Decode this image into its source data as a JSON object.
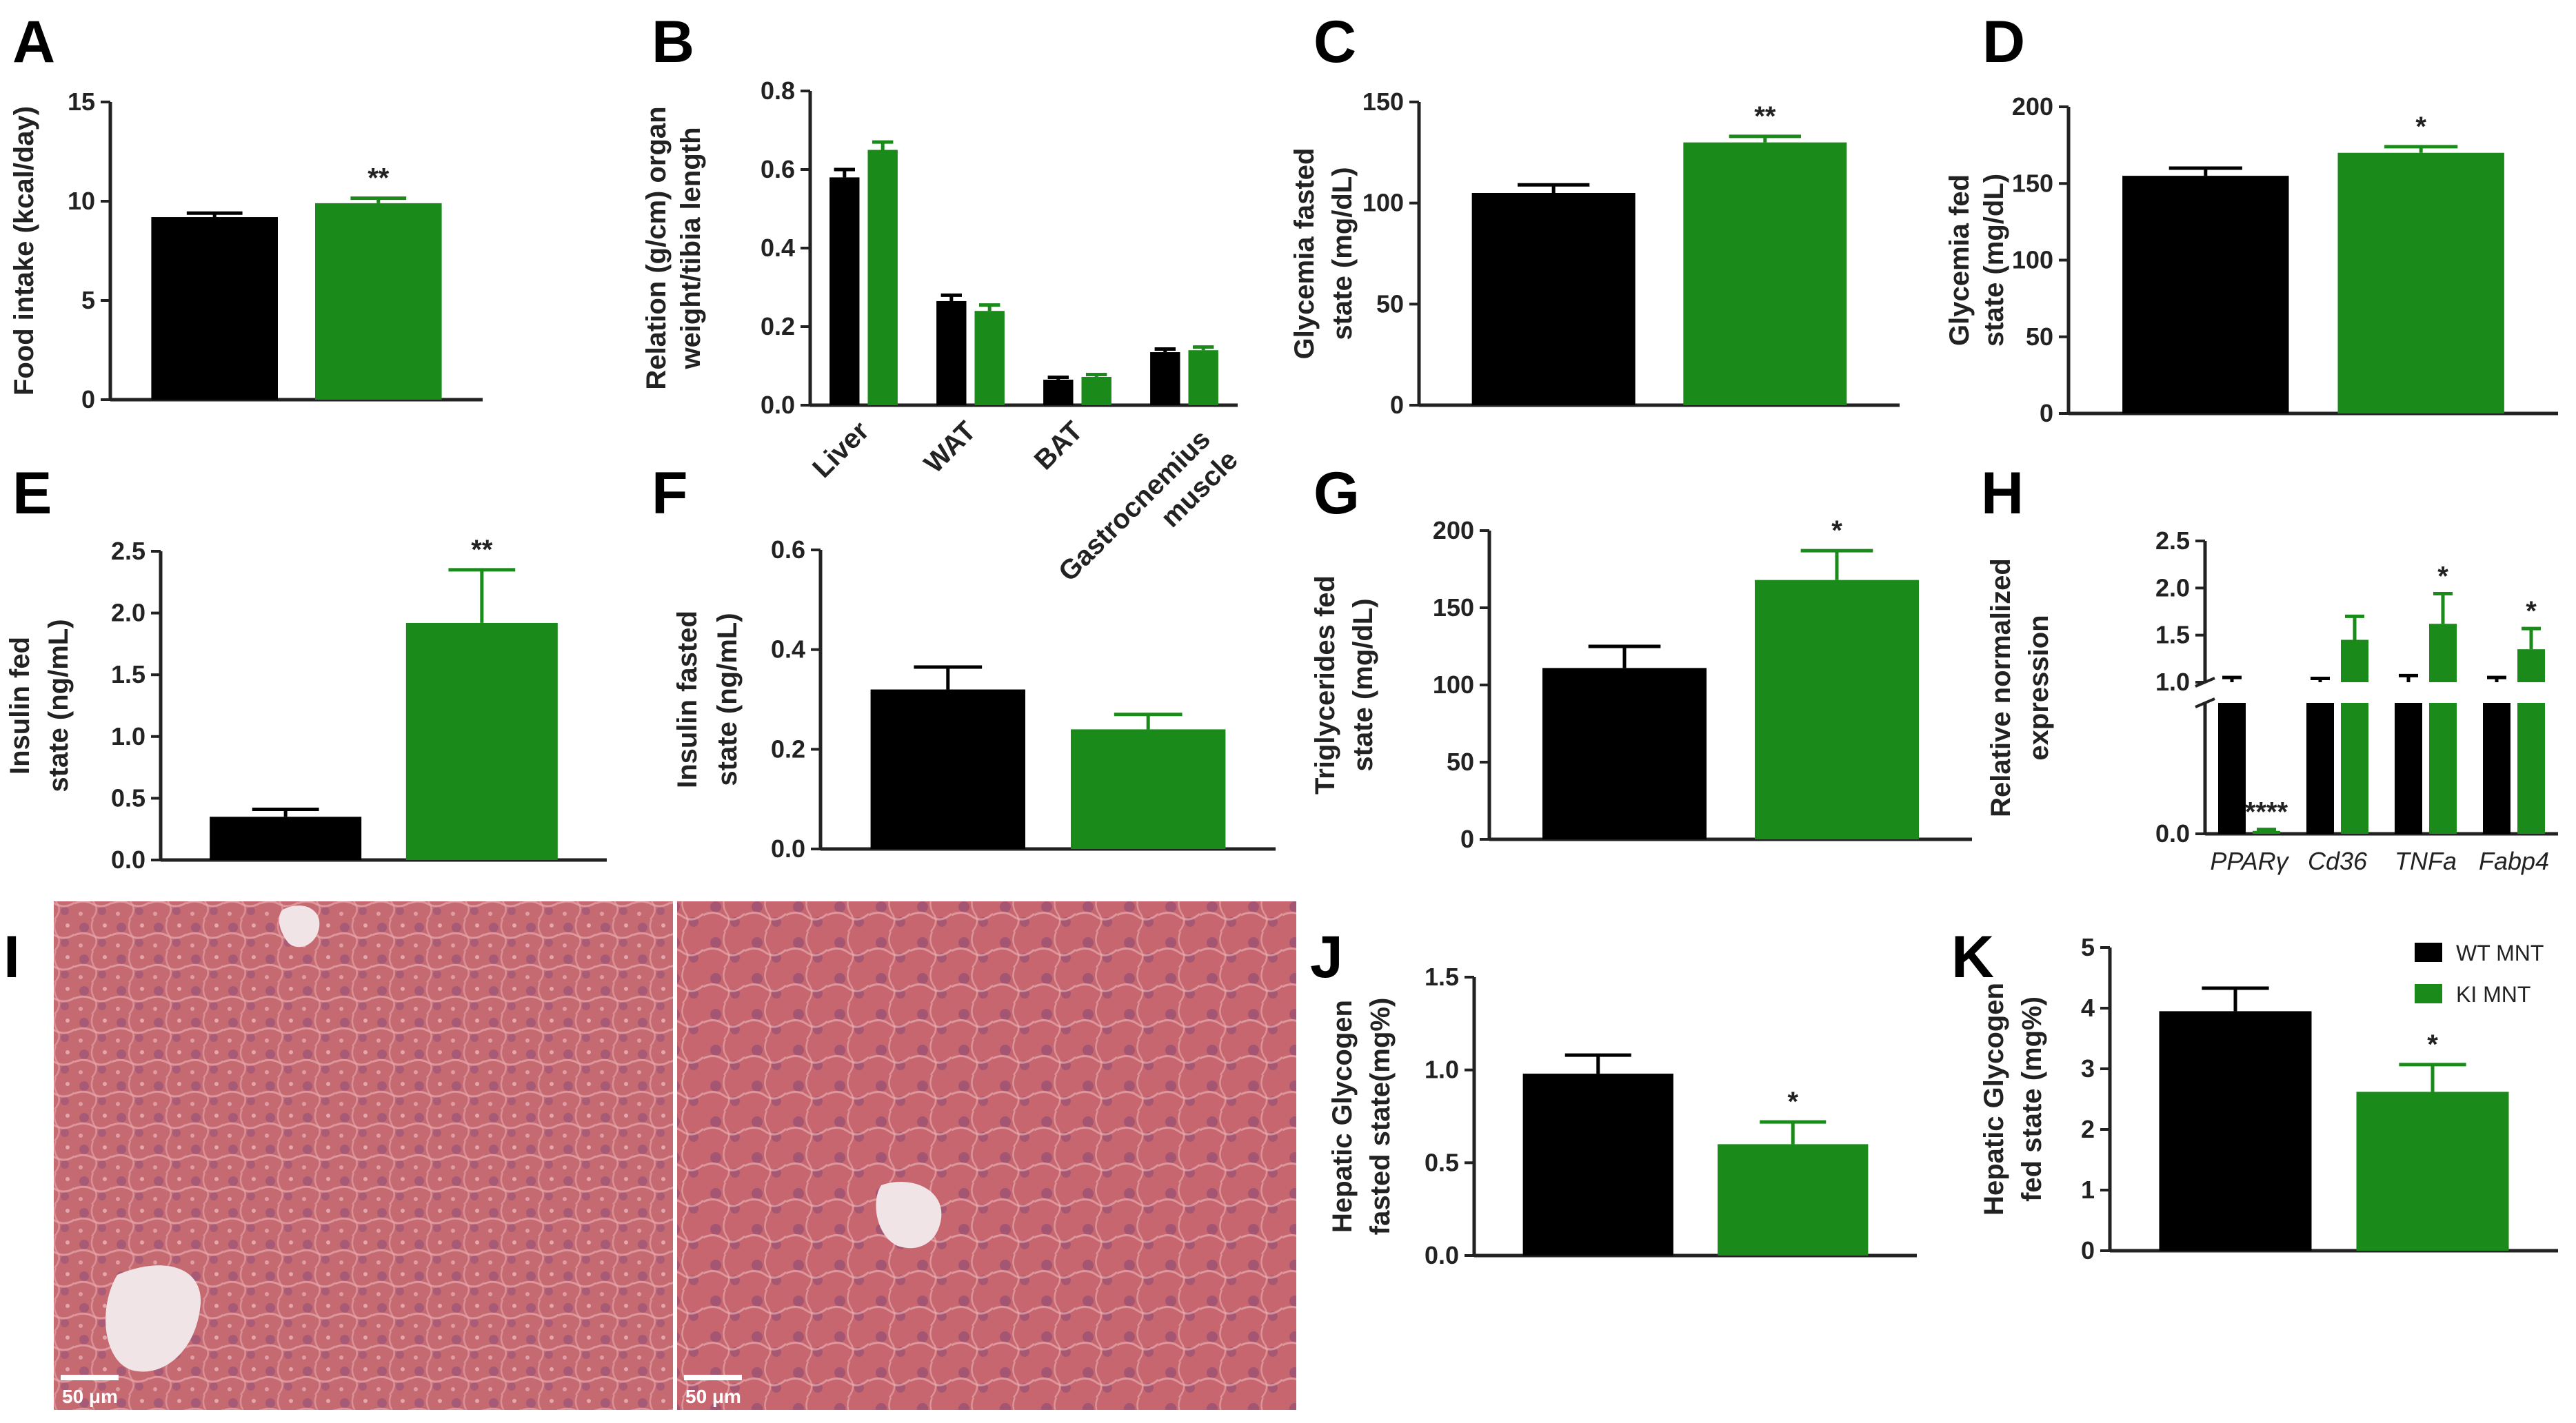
{
  "colors": {
    "wt": "#000000",
    "ki": "#1a8a1a",
    "axis": "#222222",
    "tissue": "#c8636e"
  },
  "legend": [
    {
      "label": "WT MNT",
      "color": "#000000"
    },
    {
      "label": "KI MNT",
      "color": "#1a8a1a"
    }
  ],
  "histology": {
    "label": "I",
    "panels": [
      {
        "scalebar": "50 μm"
      },
      {
        "scalebar": "50 μm"
      }
    ]
  },
  "chart_data": [
    {
      "id": "A",
      "label": "A",
      "type": "bar",
      "ylabel": "Food intake (kcal/day)",
      "ylim": [
        0,
        15
      ],
      "yticks": [
        "0",
        "5",
        "10",
        "15"
      ],
      "categories": [
        "WT MNT",
        "KI MNT"
      ],
      "values": [
        9.2,
        9.9
      ],
      "errors": [
        0.2,
        0.25
      ],
      "sig": [
        "",
        "**"
      ]
    },
    {
      "id": "B",
      "label": "B",
      "type": "bar",
      "ylabel": "Relation (g/cm) organ weight/tibia length",
      "ylim": [
        0,
        0.8
      ],
      "yticks": [
        "0.0",
        "0.2",
        "0.4",
        "0.6",
        "0.8"
      ],
      "categories": [
        "Liver",
        "WAT",
        "BAT",
        "Gastrocnemius muscle"
      ],
      "series": [
        {
          "name": "WT MNT",
          "values": [
            0.58,
            0.265,
            0.065,
            0.135
          ],
          "errors": [
            0.02,
            0.015,
            0.006,
            0.008
          ]
        },
        {
          "name": "KI MNT",
          "values": [
            0.65,
            0.24,
            0.072,
            0.14
          ],
          "errors": [
            0.02,
            0.015,
            0.006,
            0.008
          ]
        }
      ]
    },
    {
      "id": "C",
      "label": "C",
      "type": "bar",
      "ylabel": "Glycemia fasted state (mg/dL)",
      "ylim": [
        0,
        150
      ],
      "yticks": [
        "0",
        "50",
        "100",
        "150"
      ],
      "categories": [
        "WT MNT",
        "KI MNT"
      ],
      "values": [
        105,
        130
      ],
      "errors": [
        4,
        3
      ],
      "sig": [
        "",
        "**"
      ]
    },
    {
      "id": "D",
      "label": "D",
      "type": "bar",
      "ylabel": "Glycemia fed state (mg/dL)",
      "ylim": [
        0,
        200
      ],
      "yticks": [
        "0",
        "50",
        "100",
        "150",
        "200"
      ],
      "categories": [
        "WT MNT",
        "KI MNT"
      ],
      "values": [
        155,
        170
      ],
      "errors": [
        5,
        4
      ],
      "sig": [
        "",
        "*"
      ]
    },
    {
      "id": "E",
      "label": "E",
      "type": "bar",
      "ylabel": "Insulin fed state (ng/mL)",
      "ylim": [
        0,
        2.5
      ],
      "yticks": [
        "0.0",
        "0.5",
        "1.0",
        "1.5",
        "2.0",
        "2.5"
      ],
      "categories": [
        "WT MNT",
        "KI MNT"
      ],
      "values": [
        0.35,
        1.92
      ],
      "errors": [
        0.06,
        0.43
      ],
      "sig": [
        "",
        "**"
      ]
    },
    {
      "id": "F",
      "label": "F",
      "type": "bar",
      "ylabel": "Insulin fasted state (ng/mL)",
      "ylim": [
        0,
        0.6
      ],
      "yticks": [
        "0.0",
        "0.2",
        "0.4",
        "0.6"
      ],
      "categories": [
        "WT MNT",
        "KI MNT"
      ],
      "values": [
        0.32,
        0.24
      ],
      "errors": [
        0.045,
        0.03
      ],
      "sig": [
        "",
        ""
      ]
    },
    {
      "id": "G",
      "label": "G",
      "type": "bar",
      "ylabel": "Triglycerides fed state (mg/dL)",
      "ylim": [
        0,
        200
      ],
      "yticks": [
        "0",
        "50",
        "100",
        "150",
        "200"
      ],
      "categories": [
        "WT MNT",
        "KI MNT"
      ],
      "values": [
        111,
        168
      ],
      "errors": [
        14,
        19
      ],
      "sig": [
        "",
        "*"
      ]
    },
    {
      "id": "H",
      "label": "H",
      "type": "bar",
      "ylabel": "Relative normalized expression",
      "yticks_upper": [
        "1.0",
        "1.5",
        "2.0",
        "2.5"
      ],
      "yticks_lower": [
        "0.0"
      ],
      "categories": [
        "PPARγ",
        "Cd36",
        "TNFa",
        "Fabp4"
      ],
      "series": [
        {
          "name": "WT MNT",
          "values": [
            1.0,
            1.0,
            1.0,
            1.0
          ],
          "errors": [
            0.05,
            0.04,
            0.07,
            0.05
          ]
        },
        {
          "name": "KI MNT",
          "values": [
            0.02,
            1.45,
            1.62,
            1.35
          ],
          "errors": [
            0.01,
            0.25,
            0.32,
            0.22
          ]
        }
      ],
      "sig": [
        "****",
        "",
        "*",
        "*"
      ]
    },
    {
      "id": "J",
      "label": "J",
      "type": "bar",
      "ylabel": "Hepatic Glycogen fasted state(mg%)",
      "ylim": [
        0,
        1.5
      ],
      "yticks": [
        "0.0",
        "0.5",
        "1.0",
        "1.5"
      ],
      "categories": [
        "WT MNT",
        "KI MNT"
      ],
      "values": [
        0.98,
        0.6
      ],
      "errors": [
        0.1,
        0.12
      ],
      "sig": [
        "",
        "*"
      ]
    },
    {
      "id": "K",
      "label": "K",
      "type": "bar",
      "ylabel": "Hepatic Glycogen fed state (mg%)",
      "ylim": [
        0,
        5
      ],
      "yticks": [
        "0",
        "1",
        "2",
        "3",
        "4",
        "5"
      ],
      "categories": [
        "WT MNT",
        "KI MNT"
      ],
      "values": [
        3.95,
        2.62
      ],
      "errors": [
        0.38,
        0.45
      ],
      "sig": [
        "",
        "*"
      ]
    }
  ]
}
